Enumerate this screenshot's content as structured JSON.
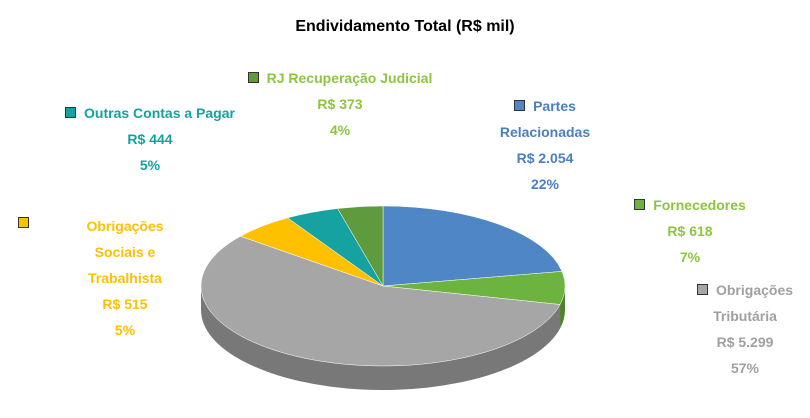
{
  "chart_data": {
    "type": "pie3d",
    "title": "Endividamento Total (R$ mil)",
    "categories": [
      "Partes Relacionadas",
      "Fornecedores",
      "Obrigações Tributária",
      "Obrigações Sociais e Trabalhista",
      "Outras Contas a Pagar",
      "RJ Recuperação Judicial"
    ],
    "values": [
      2054,
      618,
      5299,
      515,
      444,
      373
    ],
    "value_labels": [
      "R$ 2.054",
      "R$ 618",
      "R$ 5.299",
      "R$ 515",
      "R$ 444",
      "R$ 373"
    ],
    "percents": [
      22,
      7,
      57,
      5,
      5,
      4
    ],
    "percent_labels": [
      "22%",
      "7%",
      "57%",
      "5%",
      "5%",
      "4%"
    ],
    "colors": [
      "#4f86c6",
      "#6cb33f",
      "#a6a6a6",
      "#ffc000",
      "#17a2a2",
      "#5e9b3e"
    ],
    "label_colors": [
      "#4a7fc0",
      "#8cc63f",
      "#a0a0a0",
      "#ffc000",
      "#17a0a0",
      "#8cc63f"
    ]
  }
}
